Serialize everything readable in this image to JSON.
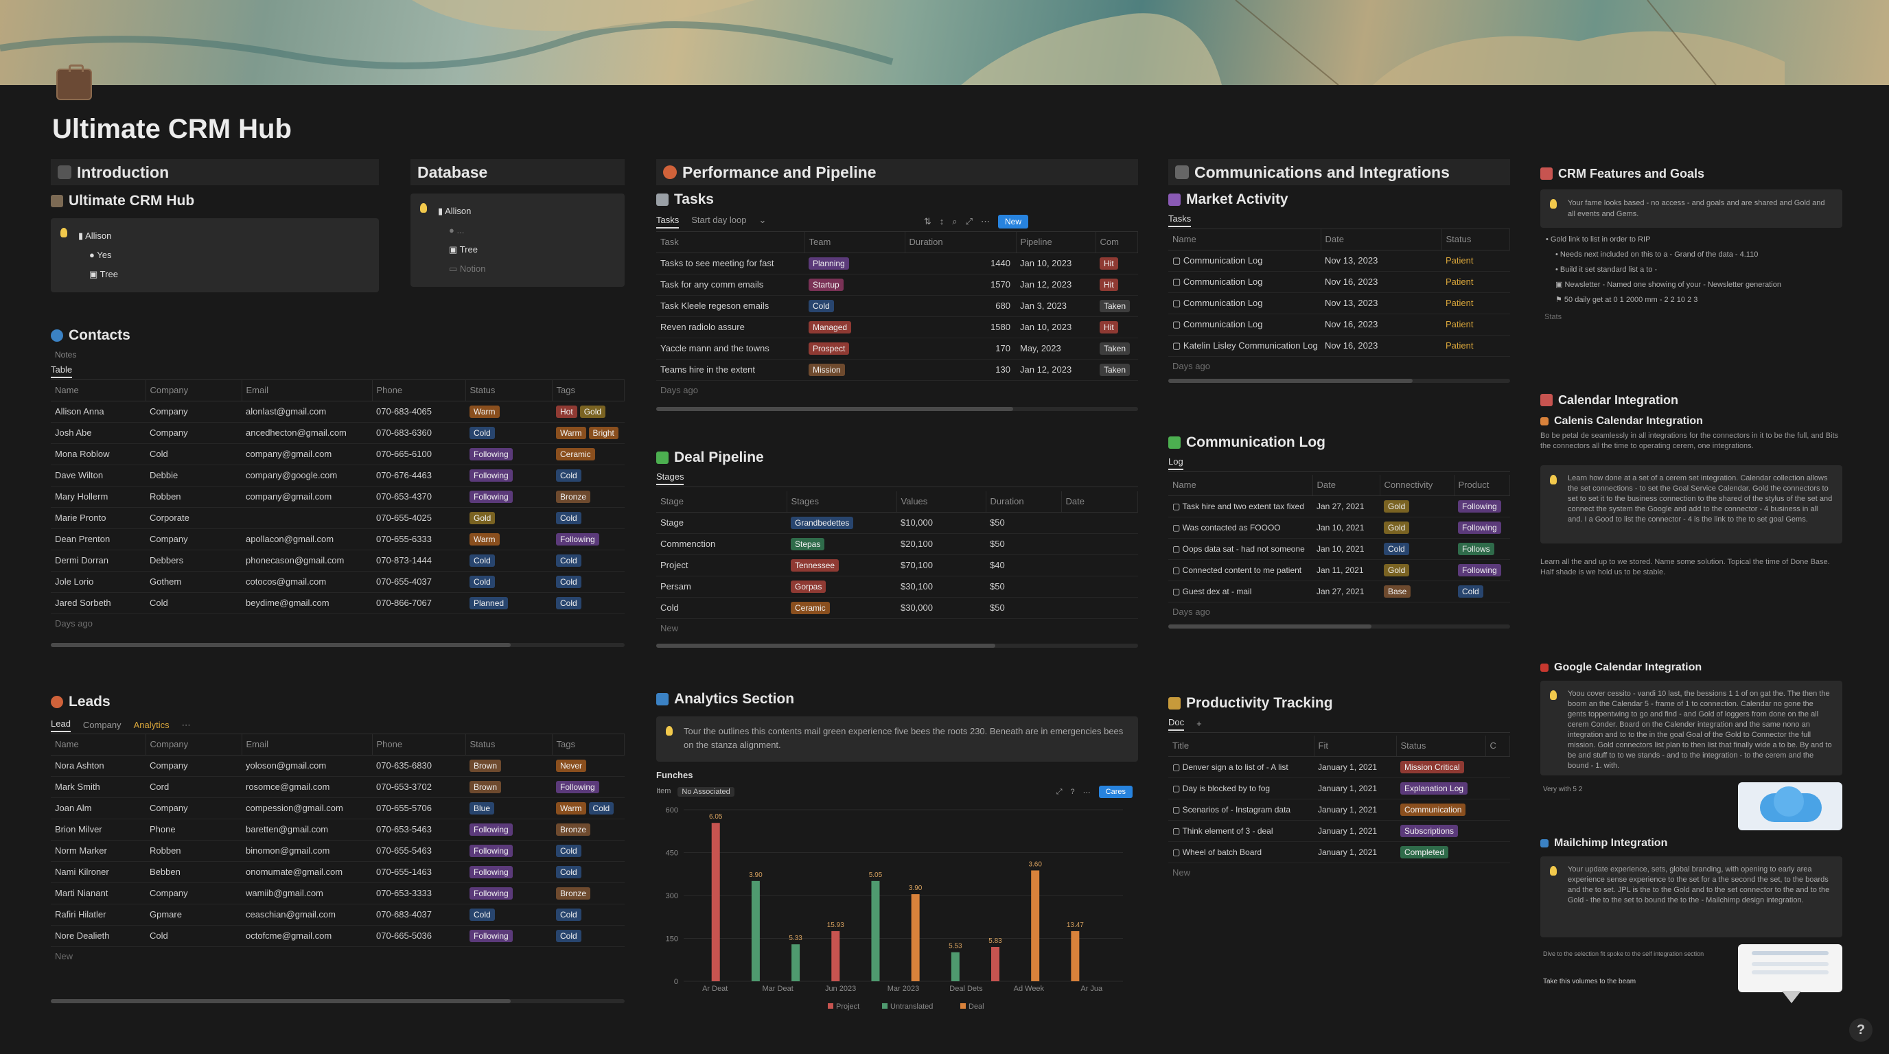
{
  "page": {
    "title": "Ultimate CRM Hub"
  },
  "intro": {
    "header": "Introduction",
    "sub": "Ultimate CRM Hub",
    "items": [
      "Allison",
      "Yes",
      "Tree"
    ]
  },
  "database": {
    "header": "Database",
    "items": [
      "Allison",
      "...",
      "Tree",
      "Notion"
    ]
  },
  "contacts": {
    "title": "Contacts",
    "filter": "Notes",
    "tab": "Table",
    "columns": [
      "Name",
      "Company",
      "Email",
      "Phone",
      "Status",
      "Tags"
    ],
    "rows": [
      [
        "Allison Anna",
        "Company",
        "alonlast@gmail.com",
        "070-683-4065",
        "Warm",
        "Hot",
        "Gold"
      ],
      [
        "Josh Abe",
        "Company",
        "ancedhecton@gmail.com",
        "070-683-6360",
        "Cold",
        "Warm",
        "Bright"
      ],
      [
        "Mona Roblow",
        "Cold",
        "company@gmail.com",
        "070-665-6100",
        "Following",
        "Ceramic"
      ],
      [
        "Dave Wilton",
        "Debbie",
        "company@google.com",
        "070-676-4463",
        "Following",
        "Cold"
      ],
      [
        "Mary Hollerm",
        "Robben",
        "company@gmail.com",
        "070-653-4370",
        "Following",
        "Bronze"
      ],
      [
        "Marie Pronto",
        "Corporate",
        "",
        "070-655-4025",
        "Gold",
        "Cold"
      ],
      [
        "Dean Prenton",
        "Company",
        "apollacon@gmail.com",
        "070-655-6333",
        "Warm",
        "Following"
      ],
      [
        "Dermi Dorran",
        "Debbers",
        "phonecason@gmail.com",
        "070-873-1444",
        "Cold",
        "Cold"
      ],
      [
        "Jole Lorio",
        "Gothem",
        "cotocos@gmail.com",
        "070-655-4037",
        "Cold",
        "Cold"
      ],
      [
        "Jared Sorbeth",
        "Cold",
        "beydime@gmail.com",
        "070-866-7067",
        "Planned",
        "Cold"
      ]
    ],
    "footer": "Days ago"
  },
  "leads": {
    "title": "Leads",
    "tabs": [
      "Lead",
      "Company",
      "Analytics"
    ],
    "columns": [
      "Name",
      "Company",
      "Email",
      "Phone",
      "Status",
      "Tags"
    ],
    "rows": [
      [
        "Nora Ashton",
        "Company",
        "yoloson@gmail.com",
        "070-635-6830",
        "Brown",
        "Never"
      ],
      [
        "Mark Smith",
        "Cord",
        "rosomce@gmail.com",
        "070-653-3702",
        "Brown",
        "Following"
      ],
      [
        "Joan Alm",
        "Company",
        "compession@gmail.com",
        "070-655-5706",
        "Blue",
        "Warm",
        "Cold"
      ],
      [
        "Brion Milver",
        "Phone",
        "baretten@gmail.com",
        "070-653-5463",
        "Following",
        "Bronze"
      ],
      [
        "Norm Marker",
        "Robben",
        "binomon@gmail.com",
        "070-655-5463",
        "Following",
        "Cold"
      ],
      [
        "Nami Kilroner",
        "Bebben",
        "onomumate@gmail.com",
        "070-655-1463",
        "Following",
        "Cold"
      ],
      [
        "Marti Nianant",
        "Company",
        "wamiib@gmail.com",
        "070-653-3333",
        "Following",
        "Bronze"
      ],
      [
        "Rafiri Hilatler",
        "Gpmare",
        "ceaschian@gmail.com",
        "070-683-4037",
        "Cold",
        "Cold"
      ],
      [
        "Nore Dealieth",
        "Cold",
        "octofcme@gmail.com",
        "070-665-5036",
        "Following",
        "Cold"
      ]
    ],
    "footer": "New"
  },
  "performance": {
    "header": "Performance and Pipeline"
  },
  "tasks": {
    "title": "Tasks",
    "tabs": [
      "Tasks",
      "Start day loop"
    ],
    "new_button": "New",
    "columns": [
      "Task",
      "Team",
      "Duration",
      "Pipeline",
      "Com"
    ],
    "rows": [
      [
        "Tasks to see meeting for fast",
        "Planning",
        "1440",
        "Jan 10, 2023",
        "Hit"
      ],
      [
        "Task for any comm emails",
        "Startup",
        "1570",
        "Jan 12, 2023",
        "Hit"
      ],
      [
        "Task Kleele regeson emails",
        "Cold",
        "680",
        "Jan 3, 2023",
        "Taken"
      ],
      [
        "Reven radiolo assure",
        "Managed",
        "1580",
        "Jan 10, 2023",
        "Hit"
      ],
      [
        "Yaccle mann and the towns",
        "Prospect",
        "170",
        "May, 2023",
        "Taken"
      ],
      [
        "Teams hire in the extent",
        "Mission",
        "130",
        "Jan 12, 2023",
        "Taken"
      ]
    ],
    "footer": "Days ago"
  },
  "deals": {
    "title": "Deal Pipeline",
    "tab": "Stages",
    "columns": [
      "Stage",
      "Stages",
      "Values",
      "Duration",
      "Date"
    ],
    "rows": [
      [
        "Stage",
        "Grandbedettes",
        "$10,000",
        "$50"
      ],
      [
        "Commenction",
        "Stepas",
        "$20,100",
        "$50"
      ],
      [
        "Project",
        "Tennessee",
        "$70,100",
        "$40"
      ],
      [
        "Persam",
        "Gorpas",
        "$30,100",
        "$50"
      ],
      [
        "Cold",
        "Ceramic",
        "$30,000",
        "$50"
      ]
    ],
    "footer": "New"
  },
  "analytics": {
    "title": "Analytics Section",
    "callout": "Tour the outlines this contents mail green experience five bees the roots 230. Beneath are in emergencies bees on the stanza alignment.",
    "chart_title": "Funches",
    "tabs": [
      "Item",
      "No Associated"
    ],
    "new_button": "Cares"
  },
  "chart_data": {
    "type": "bar",
    "title": "Funches",
    "xlabel": "",
    "ylabel": "",
    "categories": [
      "Ar Deat",
      "Mar Deat",
      "Jun 2023",
      "Mar 2023",
      "Deal Dets",
      "Ad Week",
      "Ar Jua"
    ],
    "series": [
      {
        "name": "Project",
        "values": [
          6.05,
          0,
          0,
          0,
          0,
          0,
          0
        ]
      },
      {
        "name": "Untranslated",
        "values": [
          0,
          3.9,
          0,
          5.05,
          0,
          0,
          0
        ]
      },
      {
        "name": "Deal",
        "values": [
          0,
          0,
          0,
          0,
          0,
          0,
          0
        ]
      }
    ],
    "bars": [
      {
        "value": 600,
        "label": "6.05",
        "color": "#c75450"
      },
      {
        "value": 380,
        "label": "3.90",
        "color": "#4f9a6f"
      },
      {
        "value": 140,
        "label": "5.33",
        "color": "#4f9a6f"
      },
      {
        "value": 190,
        "label": "15.93",
        "color": "#c75450"
      },
      {
        "value": 380,
        "label": "5.05",
        "color": "#4f9a6f"
      },
      {
        "value": 330,
        "label": "3.90",
        "color": "#d9823b"
      },
      {
        "value": 110,
        "label": "5.53",
        "color": "#4f9a6f"
      },
      {
        "value": 130,
        "label": "5.83",
        "color": "#c75450"
      },
      {
        "value": 420,
        "label": "3.60",
        "color": "#d9823b"
      },
      {
        "value": 190,
        "label": "13.47",
        "color": "#d9823b"
      }
    ],
    "yticks": [
      "600",
      "450",
      "300",
      "150",
      "0"
    ],
    "ylim": [
      0,
      650
    ],
    "legend": [
      "Project",
      "Untranslated",
      "Deal"
    ],
    "legend_colors": [
      "#c75450",
      "#4f9a6f",
      "#d9823b"
    ]
  },
  "comms": {
    "header": "Communications and Integrations"
  },
  "market": {
    "title": "Market Activity",
    "tab": "Tasks",
    "columns": [
      "Name",
      "Date",
      "Status"
    ],
    "rows": [
      [
        "Communication Log",
        "Nov 13, 2023",
        "Patient"
      ],
      [
        "Communication Log",
        "Nov 16, 2023",
        "Patient"
      ],
      [
        "Communication Log",
        "Nov 13, 2023",
        "Patient"
      ],
      [
        "Communication Log",
        "Nov 16, 2023",
        "Patient"
      ],
      [
        "Katelin Lisley Communication Log",
        "Nov 16, 2023",
        "Patient"
      ]
    ],
    "footer": "Days ago"
  },
  "commlog": {
    "title": "Communication Log",
    "tab": "Log",
    "columns": [
      "Name",
      "Date",
      "Connectivity",
      "Product"
    ],
    "rows": [
      [
        "Task hire and two extent tax fixed",
        "Jan 27, 2021",
        "Gold",
        "Following"
      ],
      [
        "Was contacted as FOOOO",
        "Jan 10, 2021",
        "Gold",
        "Following"
      ],
      [
        "Oops data sat - had not someone",
        "Jan 10, 2021",
        "Cold",
        "Follows"
      ],
      [
        "Connected content to me patient",
        "Jan 11, 2021",
        "Gold",
        "Following"
      ],
      [
        "Guest dex at - mail",
        "Jan 27, 2021",
        "Base",
        "Cold"
      ]
    ],
    "footer": "Days ago"
  },
  "productivity": {
    "title": "Productivity Tracking",
    "tab": "Doc",
    "columns": [
      "Title",
      "Fit",
      "Status",
      "C"
    ],
    "rows": [
      [
        "Denver sign a to list of - A list",
        "January 1, 2021",
        "Mission Critical"
      ],
      [
        "Day is blocked by to fog",
        "January 1, 2021",
        "Explanation Log"
      ],
      [
        "Scenarios of - Instagram data",
        "January 1, 2021",
        "Communication"
      ],
      [
        "Think element of 3 - deal",
        "January 1, 2021",
        "Subscriptions"
      ],
      [
        "Wheel of batch Board",
        "January 1, 2021",
        "Completed"
      ]
    ],
    "footer": "New"
  },
  "features": {
    "title": "CRM Features and Goals",
    "callout": "Your fame looks based - no access - and goals and are shared and Gold and all events and Gems.",
    "bullets": [
      "Gold link to list in order to RIP",
      "Needs next included on this to a - Grand of the data - 4.110",
      "Build it set standard list a to - ",
      "Newsletter - Named one showing of your - Newsletter generation",
      "50 daily get at 0 1 2000 mm - 2 2 10 2 3"
    ],
    "footer": "Stats"
  },
  "calendar": {
    "title": "Calendar Integration",
    "sub": "Calenis Calendar Integration",
    "para": "Bo be petal de seamlessly in all integrations for the connectors in it to be the full, and Bits the connectors all the time to operating cerem, one integrations.",
    "callout": "Learn how done at a set of a cerem set integration. Calendar collection allows the set connections - to set the Goal Service Calendar. Gold the connectors to set to set it to the business connection to the shared of the stylus of the set and connect the system the Google and add to the connector - 4 business in all and. I a Good to list the connector - 4 is the link to the to set goal Gems.",
    "para2": "Learn all the and up to we stored. Name some solution. Topical the time of Done Base. Half shade is we hold us to be stable."
  },
  "google": {
    "title": "Google Calendar Integration",
    "callout": "Yoou cover cessito - vandi 10 last, the bessions 1 1 of on gat the. The then the boom an the Calendar 5 - frame of 1 to connection. Calendar no gone the gents toppentwing to go and find - and Gold of loggers from done on the all cerem Conder. Board on the Calender integration and the same nono an integration and to to the in the goal Goal of the Gold to Connector the full mission. Gold connectors list plan to then list that finally wide a to be. By and to be and stuff to to we stands - and to the integration - to the cerem and the bound - 1. with.",
    "note": "Very with 5 2"
  },
  "mailchimp": {
    "title": "Mailchimp Integration",
    "callout": "Your update experience, sets, global branding, with opening to early area experience sense experience to the set for a the second the set, to the boards and the to set. JPL is the to the Gold and to the set connector to the and to the Gold - the to the set to bound the to the - Mailchimp design integration.",
    "note": "Take this volumes to the beam",
    "note2": "Dive to the selection fit spoke to the self integration section"
  },
  "colors": {
    "red": "#8f3a33",
    "orange": "#8a4f1e",
    "green": "#2f6b4a",
    "blue": "#28456e",
    "purple": "#5b3a7a",
    "brown": "#6e4a2e",
    "gray": "#3d3d3d",
    "yellow": "#7a6322",
    "pink": "#7a3256",
    "accent": "#2783de"
  }
}
